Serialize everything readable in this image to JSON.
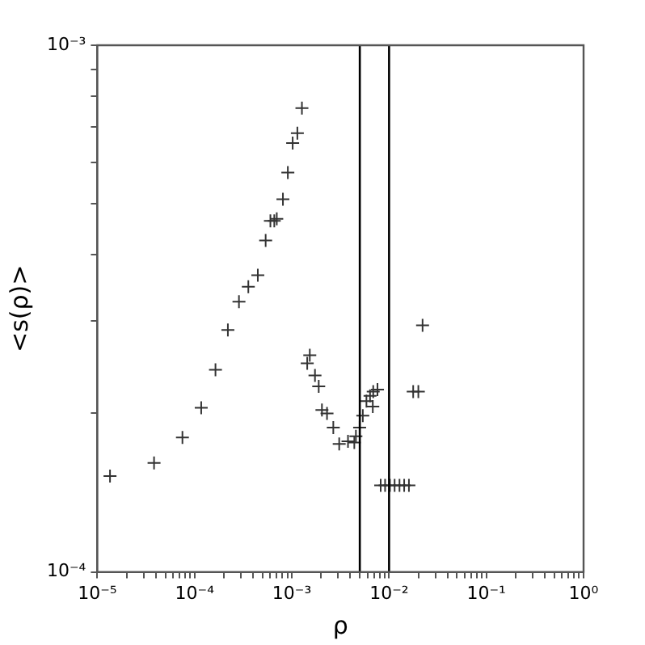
{
  "chart_data": {
    "type": "scatter",
    "xlabel": "ρ",
    "ylabel": "<s(ρ)>",
    "log": "xy",
    "marker": "cross",
    "grid": false,
    "legend": false,
    "xlim": [
      1e-05,
      1
    ],
    "ylim": [
      0.0001,
      0.001
    ],
    "xticks": [
      {
        "value": 1e-05,
        "label": "10⁻⁵"
      },
      {
        "value": 2e-05,
        "label": null
      },
      {
        "value": 3e-05,
        "label": null
      },
      {
        "value": 4e-05,
        "label": null
      },
      {
        "value": 5e-05,
        "label": null
      },
      {
        "value": 6e-05,
        "label": null
      },
      {
        "value": 7e-05,
        "label": null
      },
      {
        "value": 8e-05,
        "label": null
      },
      {
        "value": 9e-05,
        "label": null
      },
      {
        "value": 0.0001,
        "label": "10⁻⁴"
      },
      {
        "value": 0.0002,
        "label": null
      },
      {
        "value": 0.0003,
        "label": null
      },
      {
        "value": 0.0004,
        "label": null
      },
      {
        "value": 0.0005,
        "label": null
      },
      {
        "value": 0.0006,
        "label": null
      },
      {
        "value": 0.0007,
        "label": null
      },
      {
        "value": 0.0008,
        "label": null
      },
      {
        "value": 0.0009,
        "label": null
      },
      {
        "value": 0.001,
        "label": "10⁻³"
      },
      {
        "value": 0.002,
        "label": null
      },
      {
        "value": 0.003,
        "label": null
      },
      {
        "value": 0.004,
        "label": null
      },
      {
        "value": 0.005,
        "label": null
      },
      {
        "value": 0.006,
        "label": null
      },
      {
        "value": 0.007,
        "label": null
      },
      {
        "value": 0.008,
        "label": null
      },
      {
        "value": 0.009,
        "label": null
      },
      {
        "value": 0.01,
        "label": "10⁻²"
      },
      {
        "value": 0.02,
        "label": null
      },
      {
        "value": 0.03,
        "label": null
      },
      {
        "value": 0.04,
        "label": null
      },
      {
        "value": 0.05,
        "label": null
      },
      {
        "value": 0.06,
        "label": null
      },
      {
        "value": 0.07,
        "label": null
      },
      {
        "value": 0.08,
        "label": null
      },
      {
        "value": 0.09,
        "label": null
      },
      {
        "value": 0.1,
        "label": "10⁻¹"
      },
      {
        "value": 0.2,
        "label": null
      },
      {
        "value": 0.3,
        "label": null
      },
      {
        "value": 0.4,
        "label": null
      },
      {
        "value": 0.5,
        "label": null
      },
      {
        "value": 0.6,
        "label": null
      },
      {
        "value": 0.7,
        "label": null
      },
      {
        "value": 0.8,
        "label": null
      },
      {
        "value": 0.9,
        "label": null
      },
      {
        "value": 1,
        "label": "10⁰"
      }
    ],
    "yticks": [
      {
        "value": 0.0001,
        "label": "10⁻⁴"
      },
      {
        "value": 0.0002,
        "label": null
      },
      {
        "value": 0.0003,
        "label": null
      },
      {
        "value": 0.0004,
        "label": null
      },
      {
        "value": 0.0005,
        "label": null
      },
      {
        "value": 0.0006,
        "label": null
      },
      {
        "value": 0.0007,
        "label": null
      },
      {
        "value": 0.0008,
        "label": null
      },
      {
        "value": 0.0009,
        "label": null
      },
      {
        "value": 0.001,
        "label": "10⁻³"
      }
    ],
    "ref_lines": [
      {
        "axis": "x",
        "value": 0.005,
        "color": "#000000"
      },
      {
        "axis": "x",
        "value": 0.01,
        "color": "#000000"
      }
    ],
    "series": [
      {
        "color": "#333333",
        "x": [
          1.35e-05,
          3.83e-05,
          7.5e-05,
          0.000117,
          0.000164,
          0.00022,
          0.000286,
          0.000357,
          0.000447,
          0.000538,
          0.000602,
          0.00066,
          0.0007,
          0.00081,
          0.00091,
          0.00102,
          0.00114,
          0.00127,
          0.00144,
          0.00153,
          0.00173,
          0.00189,
          0.00204,
          0.0023,
          0.00267,
          0.00307,
          0.00378,
          0.00439,
          0.00456,
          0.00498,
          0.00537,
          0.00585,
          0.00637,
          0.00687,
          0.0068,
          0.0076,
          0.0082,
          0.0091,
          0.0102,
          0.0114,
          0.0128,
          0.0143,
          0.016,
          0.0177,
          0.02,
          0.0221
        ],
        "values": [
          0.000152,
          0.000161,
          0.00018,
          0.000205,
          0.000242,
          0.000288,
          0.000326,
          0.000348,
          0.000366,
          0.000426,
          0.000464,
          0.000464,
          0.000468,
          0.00051,
          0.000573,
          0.000652,
          0.000681,
          0.00076,
          0.000249,
          0.000258,
          0.000236,
          0.000225,
          0.000203,
          0.0002,
          0.000188,
          0.000175,
          0.000177,
          0.000176,
          0.000181,
          0.000188,
          0.000198,
          0.000211,
          0.000216,
          0.00022,
          0.000206,
          0.000222,
          0.000146,
          0.000146,
          0.000146,
          0.000146,
          0.000146,
          0.000146,
          0.000146,
          0.00022,
          0.00022,
          0.000294
        ]
      }
    ]
  }
}
